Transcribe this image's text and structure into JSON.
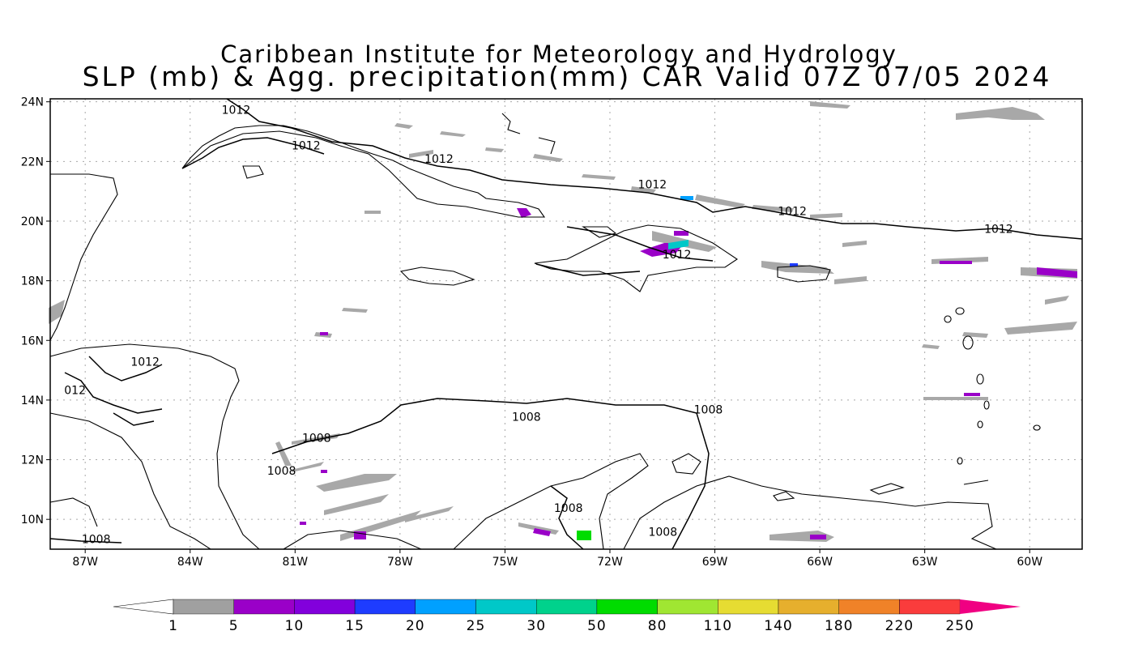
{
  "title_line1": "Caribbean Institute for Meteorology and Hydrology",
  "title_line2": "SLP (mb) & Agg. precipitation(mm) CAR Valid 07Z 07/05 2024",
  "map": {
    "lon_range": [
      -88,
      -58.5
    ],
    "lat_range": [
      9,
      24.1
    ],
    "lat_labels": [
      "24N",
      "22N",
      "20N",
      "18N",
      "16N",
      "14N",
      "12N",
      "10N"
    ],
    "lat_values": [
      24,
      22,
      20,
      18,
      16,
      14,
      12,
      10
    ],
    "lon_labels": [
      "87W",
      "84W",
      "81W",
      "78W",
      "75W",
      "72W",
      "69W",
      "66W",
      "63W",
      "60W"
    ],
    "lon_values": [
      -87,
      -84,
      -81,
      -78,
      -75,
      -72,
      -69,
      -66,
      -63,
      -60
    ],
    "gridlines": true,
    "isobar_labels": [
      {
        "text": "1012",
        "lon": -83.1,
        "lat": 23.6
      },
      {
        "text": "1012",
        "lon": -81.1,
        "lat": 22.4
      },
      {
        "text": "1012",
        "lon": -77.3,
        "lat": 21.95
      },
      {
        "text": "1012",
        "lon": -71.2,
        "lat": 21.1
      },
      {
        "text": "1012",
        "lon": -67.2,
        "lat": 20.2
      },
      {
        "text": "1012",
        "lon": -61.3,
        "lat": 19.6
      },
      {
        "text": "1012",
        "lon": -70.5,
        "lat": 18.75
      },
      {
        "text": "1012",
        "lon": -85.7,
        "lat": 15.15
      },
      {
        "text": "012",
        "lon": -87.6,
        "lat": 14.2
      },
      {
        "text": "1008",
        "lon": -74.8,
        "lat": 13.3
      },
      {
        "text": "1008",
        "lon": -69.6,
        "lat": 13.55
      },
      {
        "text": "1008",
        "lon": -80.8,
        "lat": 12.6
      },
      {
        "text": "1008",
        "lon": -81.8,
        "lat": 11.5
      },
      {
        "text": "1008",
        "lon": -73.6,
        "lat": 10.25
      },
      {
        "text": "1008",
        "lon": -70.9,
        "lat": 9.45
      },
      {
        "text": "1008",
        "lon": -87.1,
        "lat": 9.2
      }
    ]
  },
  "colorbar": {
    "labels": [
      "1",
      "5",
      "10",
      "15",
      "20",
      "25",
      "30",
      "50",
      "80",
      "110",
      "140",
      "180",
      "220",
      "250"
    ],
    "colors": [
      "#a0a0a0",
      "#9a00c8",
      "#8200dc",
      "#1e3cff",
      "#00a0ff",
      "#00c8c8",
      "#00d28c",
      "#00dc00",
      "#a0e632",
      "#e6dc32",
      "#e6af2d",
      "#f08228",
      "#fa3c3c",
      "#f00082"
    ]
  }
}
